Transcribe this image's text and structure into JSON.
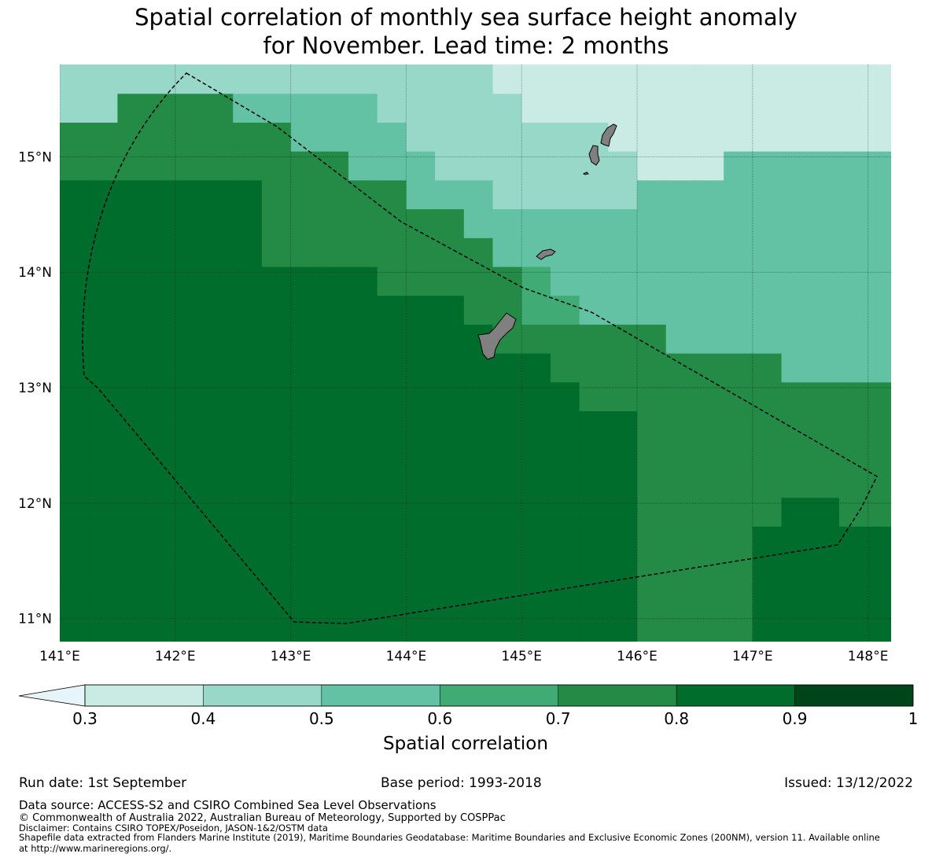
{
  "title": {
    "line1": "Spatial correlation of monthly sea surface height anomaly",
    "line2": "for November. Lead time: 2 months"
  },
  "map": {
    "lon_range": [
      141.0,
      148.2
    ],
    "lat_range": [
      10.8,
      15.8
    ],
    "cell_size_deg": 0.25,
    "x_ticks": [
      "141°E",
      "142°E",
      "143°E",
      "144°E",
      "145°E",
      "146°E",
      "147°E",
      "148°E"
    ],
    "y_ticks": [
      "15°N",
      "14°N",
      "13°N",
      "12°N",
      "11°N"
    ],
    "land_color": "#808080",
    "boundary_style": "dashed"
  },
  "colorbar": {
    "title": "Spatial correlation",
    "ticks": [
      "0.3",
      "0.4",
      "0.5",
      "0.6",
      "0.7",
      "0.8",
      "0.9",
      "1"
    ],
    "bins": [
      {
        "range": [
          0.3,
          0.4
        ],
        "color": "#c9ebe3"
      },
      {
        "range": [
          0.4,
          0.5
        ],
        "color": "#98d8c8"
      },
      {
        "range": [
          0.5,
          0.6
        ],
        "color": "#63c2a4"
      },
      {
        "range": [
          0.6,
          0.7
        ],
        "color": "#40ab74"
      },
      {
        "range": [
          0.7,
          0.8
        ],
        "color": "#238b45"
      },
      {
        "range": [
          0.8,
          0.9
        ],
        "color": "#006d2c"
      },
      {
        "range": [
          0.9,
          1.0
        ],
        "color": "#00441b"
      }
    ],
    "under_color": "#e5f5f9"
  },
  "footer": {
    "run_date": "Run date: 1st September",
    "base_period": "Base period: 1993-2018",
    "issued": "Issued: 13/12/2022",
    "data_source": "Data source: ACCESS-S2 and CSIRO Combined Sea Level Observations",
    "copyright": "© Commonwealth of Australia 2022, Australian Bureau of Meteorology, Supported by COSPPac",
    "disclaimer": "Disclaimer: Contains CSIRO TOPEX/Poseidon, JASON-1&2/OSTM data",
    "shapefile_line1": "Shapefile data extracted from Flanders Marine Institute (2019), Maritime Boundaries Geodatabase: Maritime Boundaries and Exclusive Economic Zones (200NM), version 11. Available online",
    "shapefile_line2": "at http://www.marineregions.org/."
  }
}
